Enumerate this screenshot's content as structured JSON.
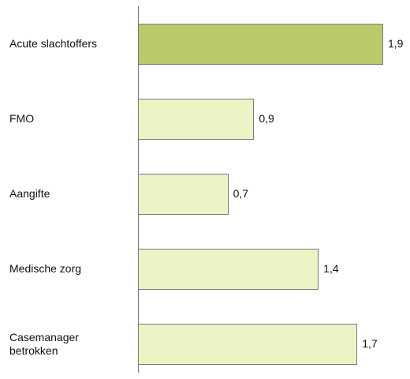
{
  "chart_data": {
    "type": "barh",
    "categories": [
      "Acute slachtoffers",
      "FMO",
      "Aangifte",
      "Medische zorg",
      "Casemanager betrokken"
    ],
    "values": [
      1.9,
      0.9,
      0.7,
      1.4,
      1.7
    ],
    "value_labels": [
      "1,9",
      "0,9",
      "0,7",
      "1,4",
      "1,7"
    ],
    "colors": [
      "#bac96b",
      "#eef3c6",
      "#eef3c6",
      "#eef3c6",
      "#eef3c6"
    ]
  }
}
